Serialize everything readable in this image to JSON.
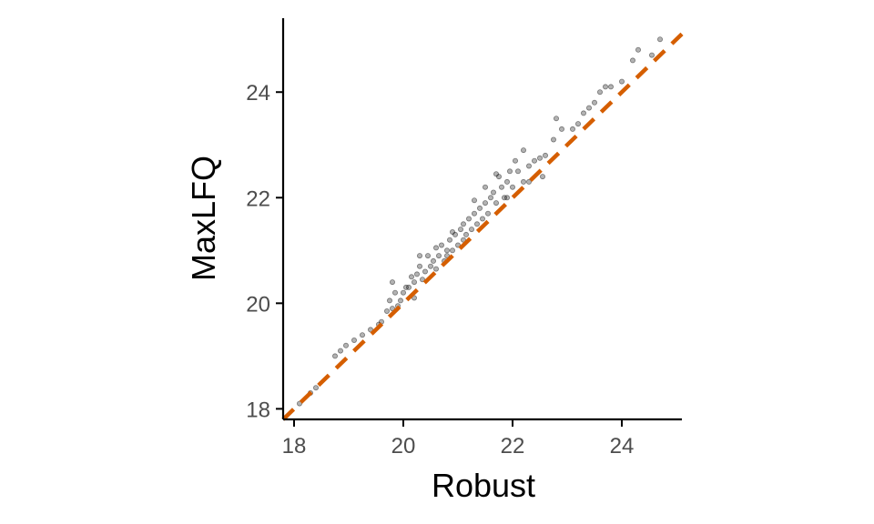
{
  "chart_data": {
    "type": "scatter",
    "title": "",
    "xlabel": "Robust",
    "ylabel": "MaxLFQ",
    "xlim": [
      17.8,
      25.1
    ],
    "ylim": [
      17.8,
      25.4
    ],
    "x_ticks": [
      18,
      20,
      22,
      24
    ],
    "y_ticks": [
      18,
      20,
      22,
      24
    ],
    "x_tick_labels": [
      "18",
      "20",
      "22",
      "24"
    ],
    "y_tick_labels": [
      "18",
      "20",
      "22",
      "24"
    ],
    "grid": false,
    "legend": "none",
    "reference_line": {
      "type": "identity",
      "slope": 1,
      "intercept": 0,
      "style": "dashed",
      "color": "#D55E00"
    },
    "point_color": "#000000",
    "point_opacity": 0.3,
    "points": [
      [
        18.1,
        18.1
      ],
      [
        18.3,
        18.3
      ],
      [
        18.4,
        18.4
      ],
      [
        18.75,
        19.0
      ],
      [
        18.85,
        19.1
      ],
      [
        18.95,
        19.2
      ],
      [
        19.1,
        19.3
      ],
      [
        19.25,
        19.4
      ],
      [
        19.4,
        19.5
      ],
      [
        19.55,
        19.6
      ],
      [
        19.6,
        19.65
      ],
      [
        19.7,
        19.85
      ],
      [
        19.75,
        20.05
      ],
      [
        19.8,
        19.9
      ],
      [
        19.85,
        20.2
      ],
      [
        19.9,
        19.95
      ],
      [
        19.95,
        20.05
      ],
      [
        20.0,
        20.2
      ],
      [
        20.05,
        20.3
      ],
      [
        20.1,
        20.3
      ],
      [
        20.15,
        20.5
      ],
      [
        20.2,
        20.4
      ],
      [
        20.25,
        20.55
      ],
      [
        20.3,
        20.7
      ],
      [
        20.35,
        20.45
      ],
      [
        20.4,
        20.6
      ],
      [
        20.45,
        20.9
      ],
      [
        20.5,
        20.7
      ],
      [
        20.55,
        20.8
      ],
      [
        20.6,
        20.65
      ],
      [
        20.65,
        20.9
      ],
      [
        20.7,
        21.1
      ],
      [
        20.75,
        20.8
      ],
      [
        20.8,
        21.0
      ],
      [
        20.85,
        21.2
      ],
      [
        20.9,
        21.0
      ],
      [
        20.95,
        21.3
      ],
      [
        21.0,
        21.1
      ],
      [
        21.05,
        21.4
      ],
      [
        21.1,
        21.5
      ],
      [
        21.15,
        21.3
      ],
      [
        21.2,
        21.6
      ],
      [
        21.25,
        21.4
      ],
      [
        21.3,
        21.7
      ],
      [
        21.35,
        21.5
      ],
      [
        21.4,
        21.8
      ],
      [
        21.45,
        21.6
      ],
      [
        21.5,
        21.9
      ],
      [
        21.55,
        21.7
      ],
      [
        21.6,
        22.0
      ],
      [
        21.65,
        22.1
      ],
      [
        21.7,
        21.9
      ],
      [
        21.75,
        22.4
      ],
      [
        21.8,
        22.2
      ],
      [
        21.85,
        22.0
      ],
      [
        21.9,
        22.3
      ],
      [
        21.95,
        22.5
      ],
      [
        22.0,
        22.2
      ],
      [
        22.1,
        22.5
      ],
      [
        22.2,
        22.3
      ],
      [
        22.3,
        22.6
      ],
      [
        22.4,
        22.7
      ],
      [
        22.5,
        22.75
      ],
      [
        22.6,
        22.8
      ],
      [
        22.75,
        23.1
      ],
      [
        22.8,
        23.5
      ],
      [
        22.9,
        23.3
      ],
      [
        23.1,
        23.3
      ],
      [
        23.2,
        23.4
      ],
      [
        23.3,
        23.6
      ],
      [
        23.4,
        23.7
      ],
      [
        23.5,
        23.8
      ],
      [
        23.6,
        24.0
      ],
      [
        23.7,
        24.1
      ],
      [
        23.8,
        24.1
      ],
      [
        24.0,
        24.2
      ],
      [
        24.2,
        24.6
      ],
      [
        24.3,
        24.8
      ],
      [
        24.55,
        24.7
      ],
      [
        24.7,
        25.0
      ],
      [
        19.8,
        20.4
      ],
      [
        20.2,
        20.1
      ],
      [
        20.3,
        20.9
      ],
      [
        20.6,
        21.05
      ],
      [
        20.8,
        20.9
      ],
      [
        20.9,
        21.35
      ],
      [
        21.1,
        21.2
      ],
      [
        21.3,
        21.95
      ],
      [
        21.5,
        22.2
      ],
      [
        21.7,
        22.45
      ],
      [
        21.9,
        22.0
      ],
      [
        22.05,
        22.7
      ],
      [
        22.3,
        22.3
      ],
      [
        22.55,
        22.4
      ],
      [
        22.2,
        22.9
      ]
    ]
  }
}
